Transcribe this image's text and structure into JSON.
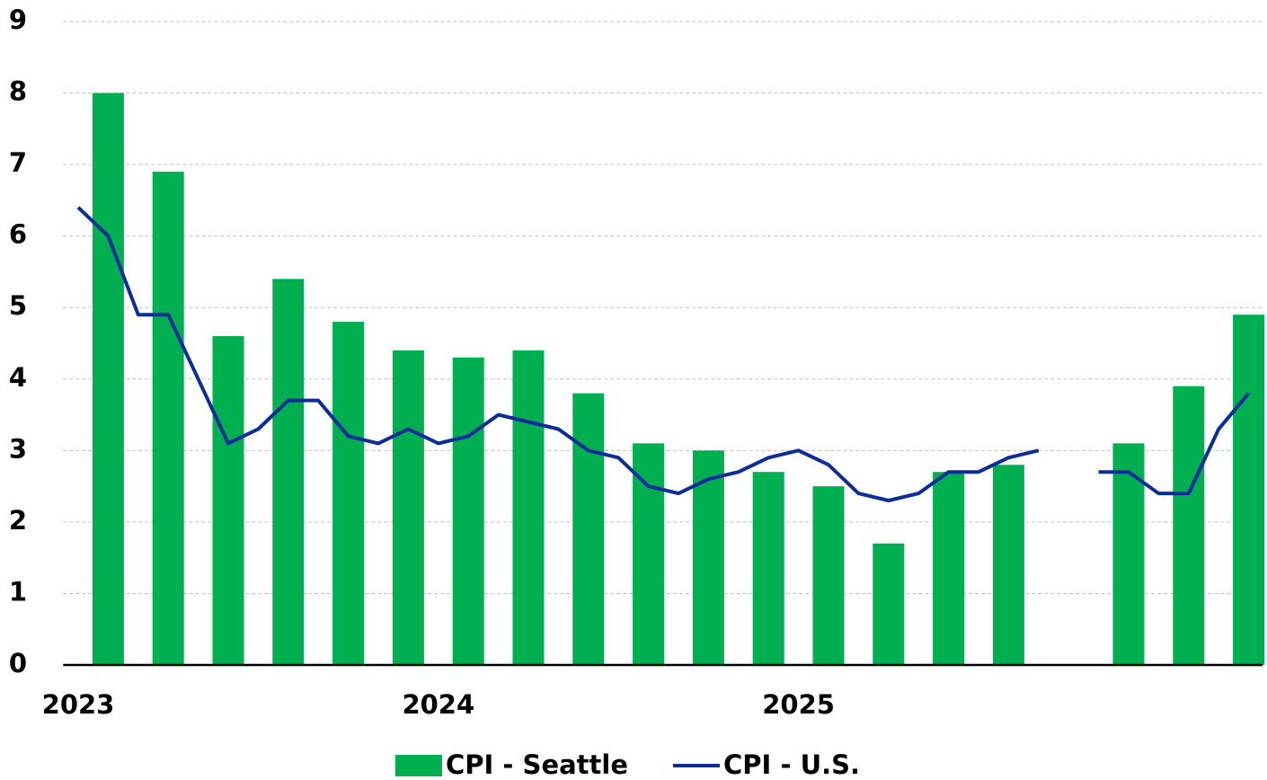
{
  "chart_data": {
    "type": "bar-line",
    "categories": [
      "2023",
      null,
      null,
      null,
      null,
      null,
      null,
      null,
      null,
      null,
      null,
      null,
      "2024",
      null,
      null,
      null,
      null,
      null,
      null,
      null,
      null,
      null,
      null,
      null,
      "2025",
      null,
      null,
      null,
      null,
      null,
      null,
      null,
      null,
      null,
      null,
      null,
      null,
      null,
      null,
      null
    ],
    "series": [
      {
        "name": "CPI - Seattle",
        "type": "bar",
        "color": "#00b050",
        "values": [
          null,
          8.0,
          null,
          6.9,
          null,
          4.6,
          null,
          5.4,
          null,
          4.8,
          null,
          4.4,
          null,
          4.3,
          null,
          4.4,
          null,
          3.8,
          null,
          3.1,
          null,
          3.0,
          null,
          2.7,
          null,
          2.5,
          null,
          1.7,
          null,
          2.7,
          null,
          2.8,
          null,
          null,
          null,
          3.1,
          null,
          3.9,
          null,
          4.9
        ]
      },
      {
        "name": "CPI - U.S.",
        "type": "line",
        "color": "#0b2d9c",
        "values": [
          6.4,
          6.0,
          4.9,
          4.9,
          4.0,
          3.1,
          3.3,
          3.7,
          3.7,
          3.2,
          3.1,
          3.3,
          3.1,
          3.2,
          3.5,
          3.4,
          3.3,
          3.0,
          2.9,
          2.5,
          2.4,
          2.6,
          2.7,
          2.9,
          3.0,
          2.8,
          2.4,
          2.3,
          2.4,
          2.7,
          2.7,
          2.9,
          3.0,
          null,
          2.7,
          2.7,
          2.4,
          2.4,
          3.3,
          3.8
        ]
      }
    ],
    "ylim": [
      0,
      9
    ],
    "yticks": [
      0,
      1,
      2,
      3,
      4,
      5,
      6,
      7,
      8,
      9
    ],
    "grid": true,
    "legend": "bottom"
  }
}
